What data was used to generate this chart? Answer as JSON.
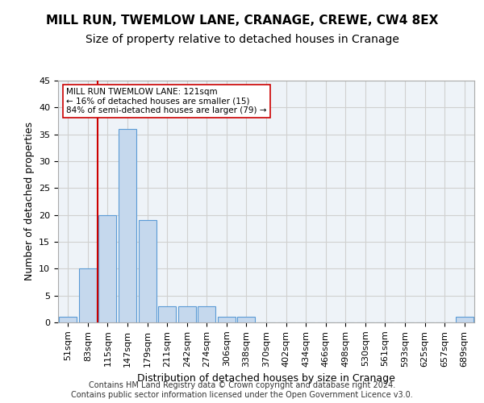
{
  "title": "MILL RUN, TWEMLOW LANE, CRANAGE, CREWE, CW4 8EX",
  "subtitle": "Size of property relative to detached houses in Cranage",
  "xlabel": "Distribution of detached houses by size in Cranage",
  "ylabel": "Number of detached properties",
  "bar_values": [
    1,
    10,
    20,
    36,
    19,
    3,
    3,
    3,
    1,
    1,
    0,
    0,
    0,
    0,
    0,
    0,
    0,
    0,
    0,
    0,
    1
  ],
  "bar_labels": [
    "51sqm",
    "83sqm",
    "115sqm",
    "147sqm",
    "179sqm",
    "211sqm",
    "242sqm",
    "274sqm",
    "306sqm",
    "338sqm",
    "370sqm",
    "402sqm",
    "434sqm",
    "466sqm",
    "498sqm",
    "530sqm",
    "561sqm",
    "593sqm",
    "625sqm",
    "657sqm",
    "689sqm"
  ],
  "bar_color": "#c5d8ed",
  "bar_edge_color": "#5b9bd5",
  "vline_color": "#cc0000",
  "vline_pos": 1.5,
  "annotation_text": "MILL RUN TWEMLOW LANE: 121sqm\n← 16% of detached houses are smaller (15)\n84% of semi-detached houses are larger (79) →",
  "annotation_box_color": "#ffffff",
  "annotation_box_edge": "#cc0000",
  "ylim": [
    0,
    45
  ],
  "yticks": [
    0,
    5,
    10,
    15,
    20,
    25,
    30,
    35,
    40,
    45
  ],
  "grid_color": "#d0d0d0",
  "bg_color": "#eef3f8",
  "footer": "Contains HM Land Registry data © Crown copyright and database right 2024.\nContains public sector information licensed under the Open Government Licence v3.0.",
  "title_fontsize": 11,
  "subtitle_fontsize": 10,
  "axis_label_fontsize": 9,
  "tick_fontsize": 8,
  "footer_fontsize": 7
}
